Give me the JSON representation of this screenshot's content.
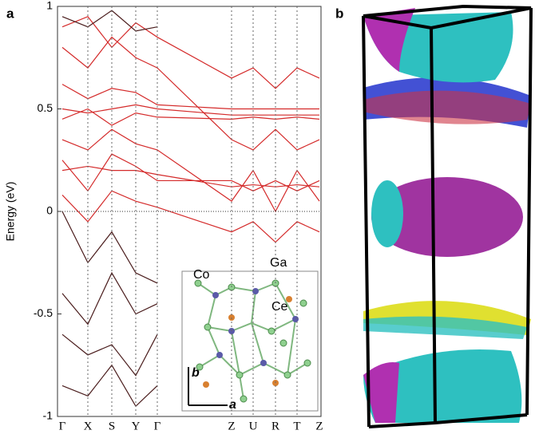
{
  "panel_labels": [
    "a",
    "b"
  ],
  "inset_labels": [
    "Co",
    "Ga",
    "Ce",
    "b",
    "a"
  ],
  "chart_data": {
    "type": "line",
    "y_label": "Energy (eV)",
    "categories": [
      "Γ",
      "X",
      "S",
      "Y",
      "Γ",
      "Z",
      "U",
      "R",
      "T",
      "Z"
    ],
    "ylim": [
      -1,
      1
    ],
    "yticks": [
      1,
      0.5,
      0,
      -0.5,
      -1
    ],
    "series": [
      {
        "color": "#d42a2a",
        "values": [
          0.5,
          0.48,
          0.5,
          0.52,
          0.5,
          0.47,
          0.47,
          0.47,
          0.47,
          0.47
        ]
      },
      {
        "color": "#d42a2a",
        "values": [
          0.45,
          0.5,
          0.42,
          0.48,
          0.46,
          0.45,
          0.46,
          0.45,
          0.46,
          0.45
        ]
      },
      {
        "color": "#d42a2a",
        "values": [
          0.62,
          0.55,
          0.6,
          0.58,
          0.52,
          0.5,
          0.5,
          0.5,
          0.5,
          0.5
        ]
      },
      {
        "color": "#d42a2a",
        "values": [
          0.2,
          0.22,
          0.2,
          0.2,
          0.18,
          0.12,
          0.13,
          0.12,
          0.13,
          0.12
        ]
      },
      {
        "color": "#d42a2a",
        "values": [
          0.25,
          0.1,
          0.28,
          0.22,
          0.15,
          0.15,
          0.1,
          0.15,
          0.1,
          0.15
        ]
      },
      {
        "color": "#d42a2a",
        "values": [
          0.08,
          -0.05,
          0.1,
          0.05,
          0.02,
          -0.1,
          -0.05,
          -0.15,
          -0.05,
          -0.1
        ]
      },
      {
        "color": "#d42a2a",
        "values": [
          0.8,
          0.7,
          0.85,
          0.75,
          0.7,
          0.35,
          0.3,
          0.4,
          0.3,
          0.35
        ]
      },
      {
        "color": "#d42a2a",
        "values": [
          0.9,
          0.95,
          0.8,
          0.92,
          0.85,
          0.65,
          0.7,
          0.6,
          0.7,
          0.65
        ]
      },
      {
        "color": "#d42a2a",
        "values": [
          0.35,
          0.3,
          0.4,
          0.33,
          0.3,
          0.05,
          0.2,
          0.0,
          0.2,
          0.05
        ]
      },
      {
        "color": "#4a1c1c",
        "values": [
          0.0,
          -0.25,
          -0.1,
          -0.3,
          -0.35,
          null,
          null,
          null,
          null,
          null
        ]
      },
      {
        "color": "#4a1c1c",
        "values": [
          -0.4,
          -0.55,
          -0.3,
          -0.5,
          -0.45,
          null,
          null,
          null,
          null,
          null
        ]
      },
      {
        "color": "#4a1c1c",
        "values": [
          -0.6,
          -0.7,
          -0.65,
          -0.8,
          -0.6,
          null,
          null,
          null,
          null,
          null
        ]
      },
      {
        "color": "#4a1c1c",
        "values": [
          -0.85,
          -0.9,
          -0.75,
          -0.95,
          -0.85,
          null,
          null,
          null,
          null,
          null
        ]
      },
      {
        "color": "#4a1c1c",
        "values": [
          0.95,
          0.9,
          0.98,
          0.88,
          0.9,
          null,
          null,
          null,
          null,
          null
        ]
      }
    ]
  }
}
